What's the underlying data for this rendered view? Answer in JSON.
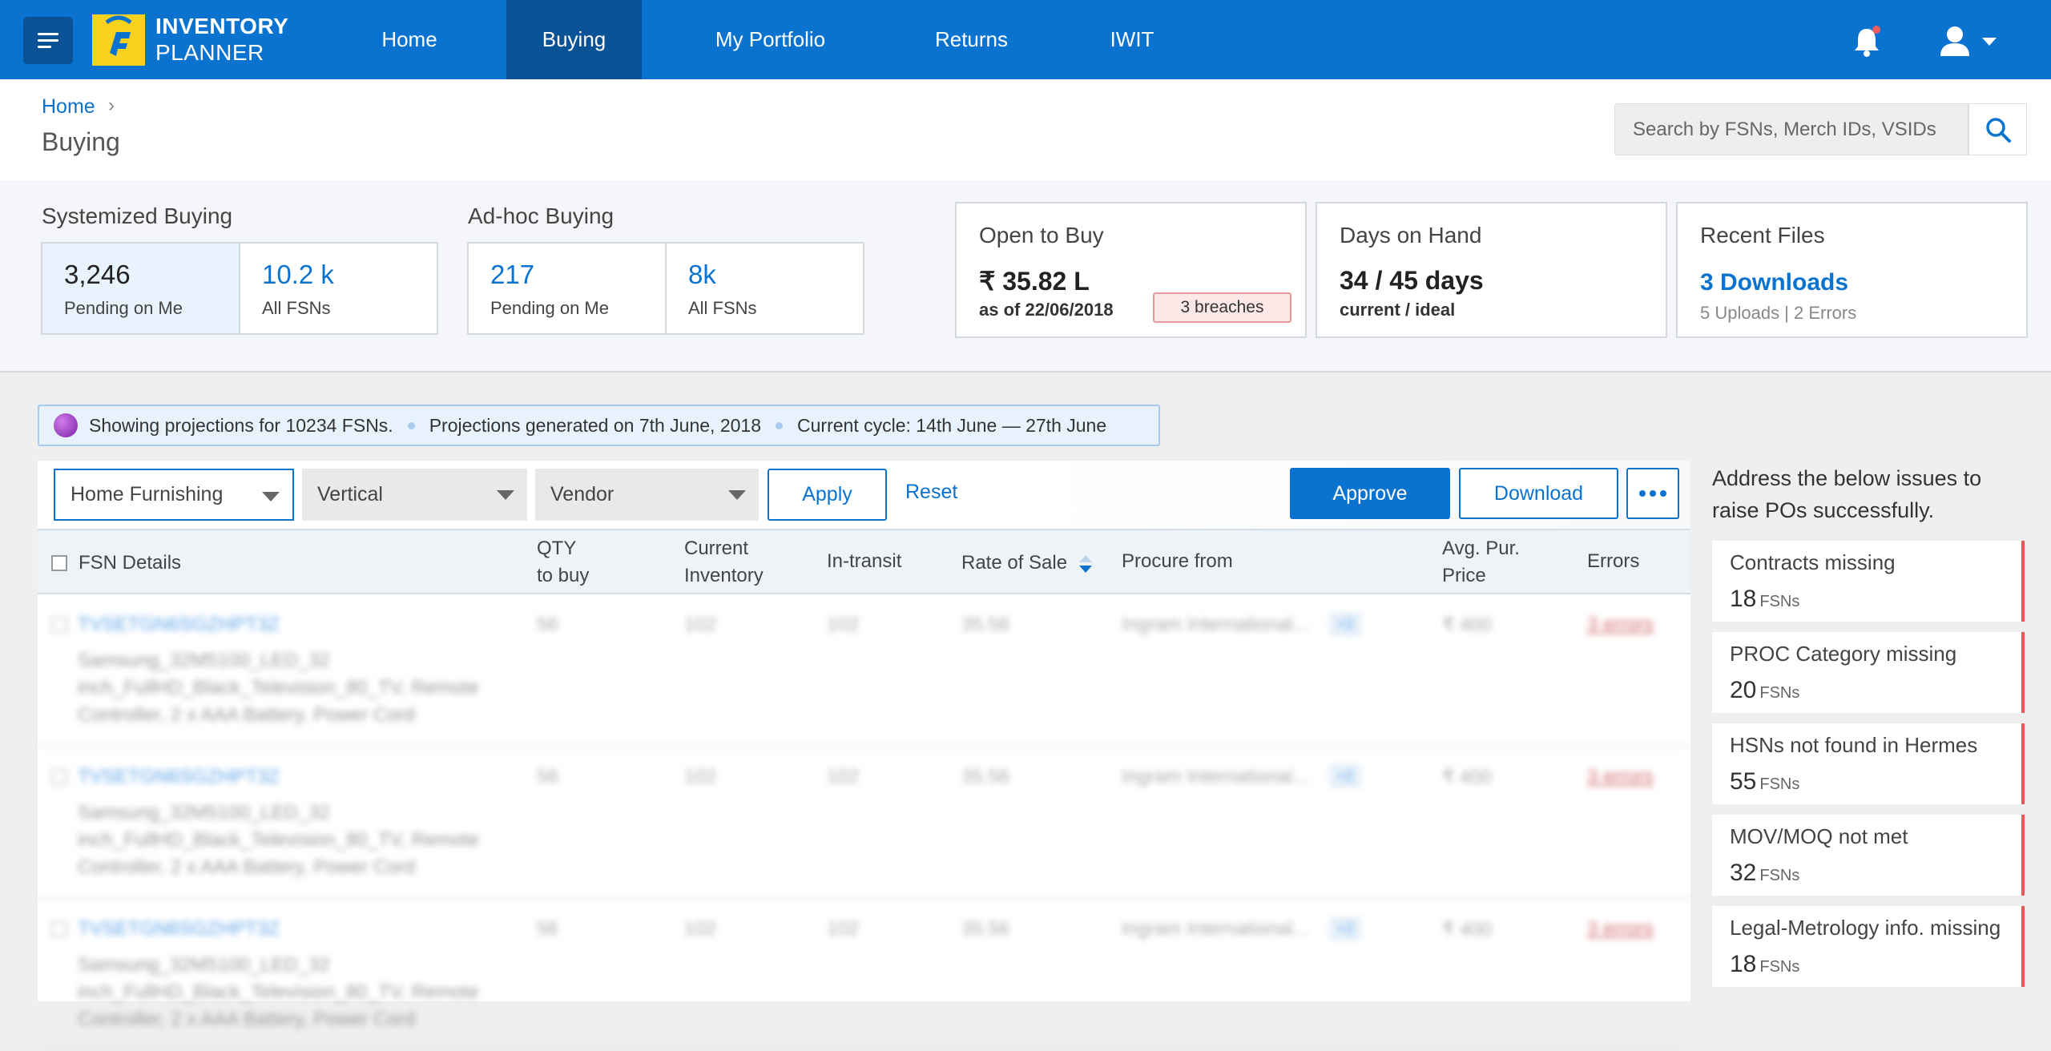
{
  "app": {
    "name_line1": "INVENTORY",
    "name_line2": "PLANNER",
    "colors": {
      "primary": "#0a73cf",
      "nav_active": "#0a5296",
      "logo": "#f7d21e",
      "error": "#e25a5a"
    }
  },
  "nav": {
    "items": [
      {
        "label": "Home",
        "active": false
      },
      {
        "label": "Buying",
        "active": true
      },
      {
        "label": "My Portfolio",
        "active": false
      },
      {
        "label": "Returns",
        "active": false
      },
      {
        "label": "IWIT",
        "active": false
      }
    ],
    "icons": [
      "menu-icon",
      "bell-icon",
      "user-icon",
      "chevron-down-icon"
    ]
  },
  "breadcrumb": {
    "home": "Home",
    "separator": "›"
  },
  "page_title": "Buying",
  "search": {
    "placeholder": "Search by FSNs, Merch IDs, VSIDs"
  },
  "systemized": {
    "title": "Systemized Buying",
    "pending": {
      "value": "3,246",
      "label": "Pending on Me"
    },
    "all": {
      "value": "10.2 k",
      "label": "All FSNs"
    }
  },
  "adhoc": {
    "title": "Ad-hoc Buying",
    "pending": {
      "value": "217",
      "label": "Pending on Me"
    },
    "all": {
      "value": "8k",
      "label": "All FSNs"
    }
  },
  "open_to_buy": {
    "title": "Open to Buy",
    "value": "₹ 35.82 L",
    "date": "as of 22/06/2018",
    "breaches": "3 breaches"
  },
  "days_on_hand": {
    "title": "Days on Hand",
    "value": "34 / 45 days",
    "sub": "current / ideal"
  },
  "recent_files": {
    "title": "Recent Files",
    "link": "3 Downloads",
    "sub": "5 Uploads | 2 Errors"
  },
  "banner": {
    "showing": "Showing projections for 10234 FSNs.",
    "generated": "Projections generated on 7th June, 2018",
    "cycle": "Current cycle: 14th June — 27th June"
  },
  "filters": {
    "category": "Home Furnishing",
    "vertical": "Vertical",
    "vendor": "Vendor",
    "apply": "Apply",
    "reset": "Reset"
  },
  "actions": {
    "approve": "Approve",
    "download": "Download"
  },
  "table": {
    "headers": {
      "fsn": "FSN Details",
      "qty_1": "QTY",
      "qty_2": "to buy",
      "inv_1": "Current",
      "inv_2": "Inventory",
      "transit": "In-transit",
      "ros": "Rate of Sale",
      "procure": "Procure from",
      "price_1": "Avg. Pur.",
      "price_2": "Price",
      "errors": "Errors"
    },
    "rows": [
      {
        "fsn": "TVSETGN6SGZHPT3Z",
        "desc": "Samsung_32M5100_LED_32 inch_FullHD_Black_Television_80_TV, Remote Controller, 2 x AAA Battery, Power Cord",
        "qty": "56",
        "inventory": "102",
        "transit": "102",
        "ros": "35.56",
        "procure": "Ingram International...",
        "extra": "+2",
        "price": "₹ 400",
        "errors": "3 errors"
      },
      {
        "fsn": "TVSETGN6SGZHPT3Z",
        "desc": "Samsung_32M5100_LED_32 inch_FullHD_Black_Television_80_TV, Remote Controller, 2 x AAA Battery, Power Cord",
        "qty": "56",
        "inventory": "102",
        "transit": "102",
        "ros": "35.56",
        "procure": "Ingram International...",
        "extra": "+2",
        "price": "₹ 400",
        "errors": "3 errors"
      },
      {
        "fsn": "TVSETGN6SGZHPT3Z",
        "desc": "Samsung_32M5100_LED_32 inch_FullHD_Black_Television_80_TV, Remote Controller, 2 x AAA Battery, Power Cord",
        "qty": "56",
        "inventory": "102",
        "transit": "102",
        "ros": "35.56",
        "procure": "Ingram International...",
        "extra": "+2",
        "price": "₹ 400",
        "errors": "3 errors"
      }
    ]
  },
  "issues": {
    "title": "Address the below issues to raise POs successfully.",
    "unit": "FSNs",
    "items": [
      {
        "label": "Contracts missing",
        "count": "18"
      },
      {
        "label": "PROC Category missing",
        "count": "20"
      },
      {
        "label": "HSNs not found in Hermes",
        "count": "55"
      },
      {
        "label": "MOV/MOQ not met",
        "count": "32"
      },
      {
        "label": "Legal-Metrology info. missing",
        "count": "18"
      }
    ]
  }
}
